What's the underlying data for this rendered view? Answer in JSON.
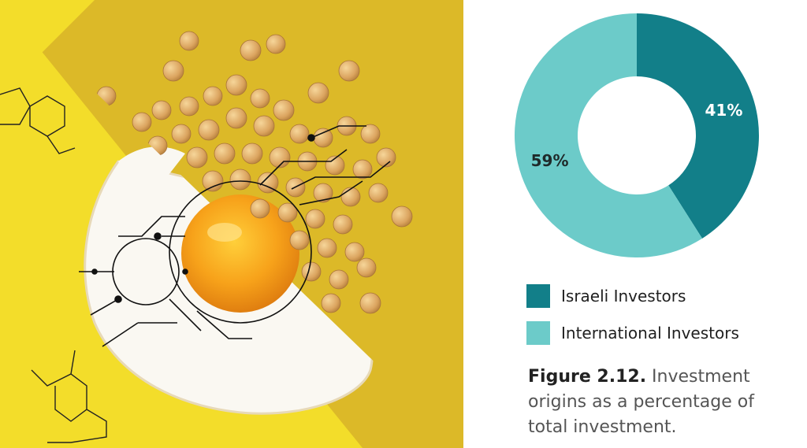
{
  "colors": {
    "israeli": "#127f89",
    "international": "#6ccbc9",
    "label_on_dark": "#ffffff",
    "label_on_light": "#1f2a2a",
    "background_yellow": "#f3dd2a",
    "background_gold": "#dcb928"
  },
  "chart_data": {
    "type": "pie",
    "style": "donut",
    "series": [
      {
        "name": "Israeli Investors",
        "value": 41,
        "label": "41%"
      },
      {
        "name": "International Investors",
        "value": 59,
        "label": "59%"
      }
    ],
    "legend_position": "bottom"
  },
  "caption": {
    "lead": "Figure 2.12.",
    "text": " Investment origins as a percentage of total investment."
  }
}
